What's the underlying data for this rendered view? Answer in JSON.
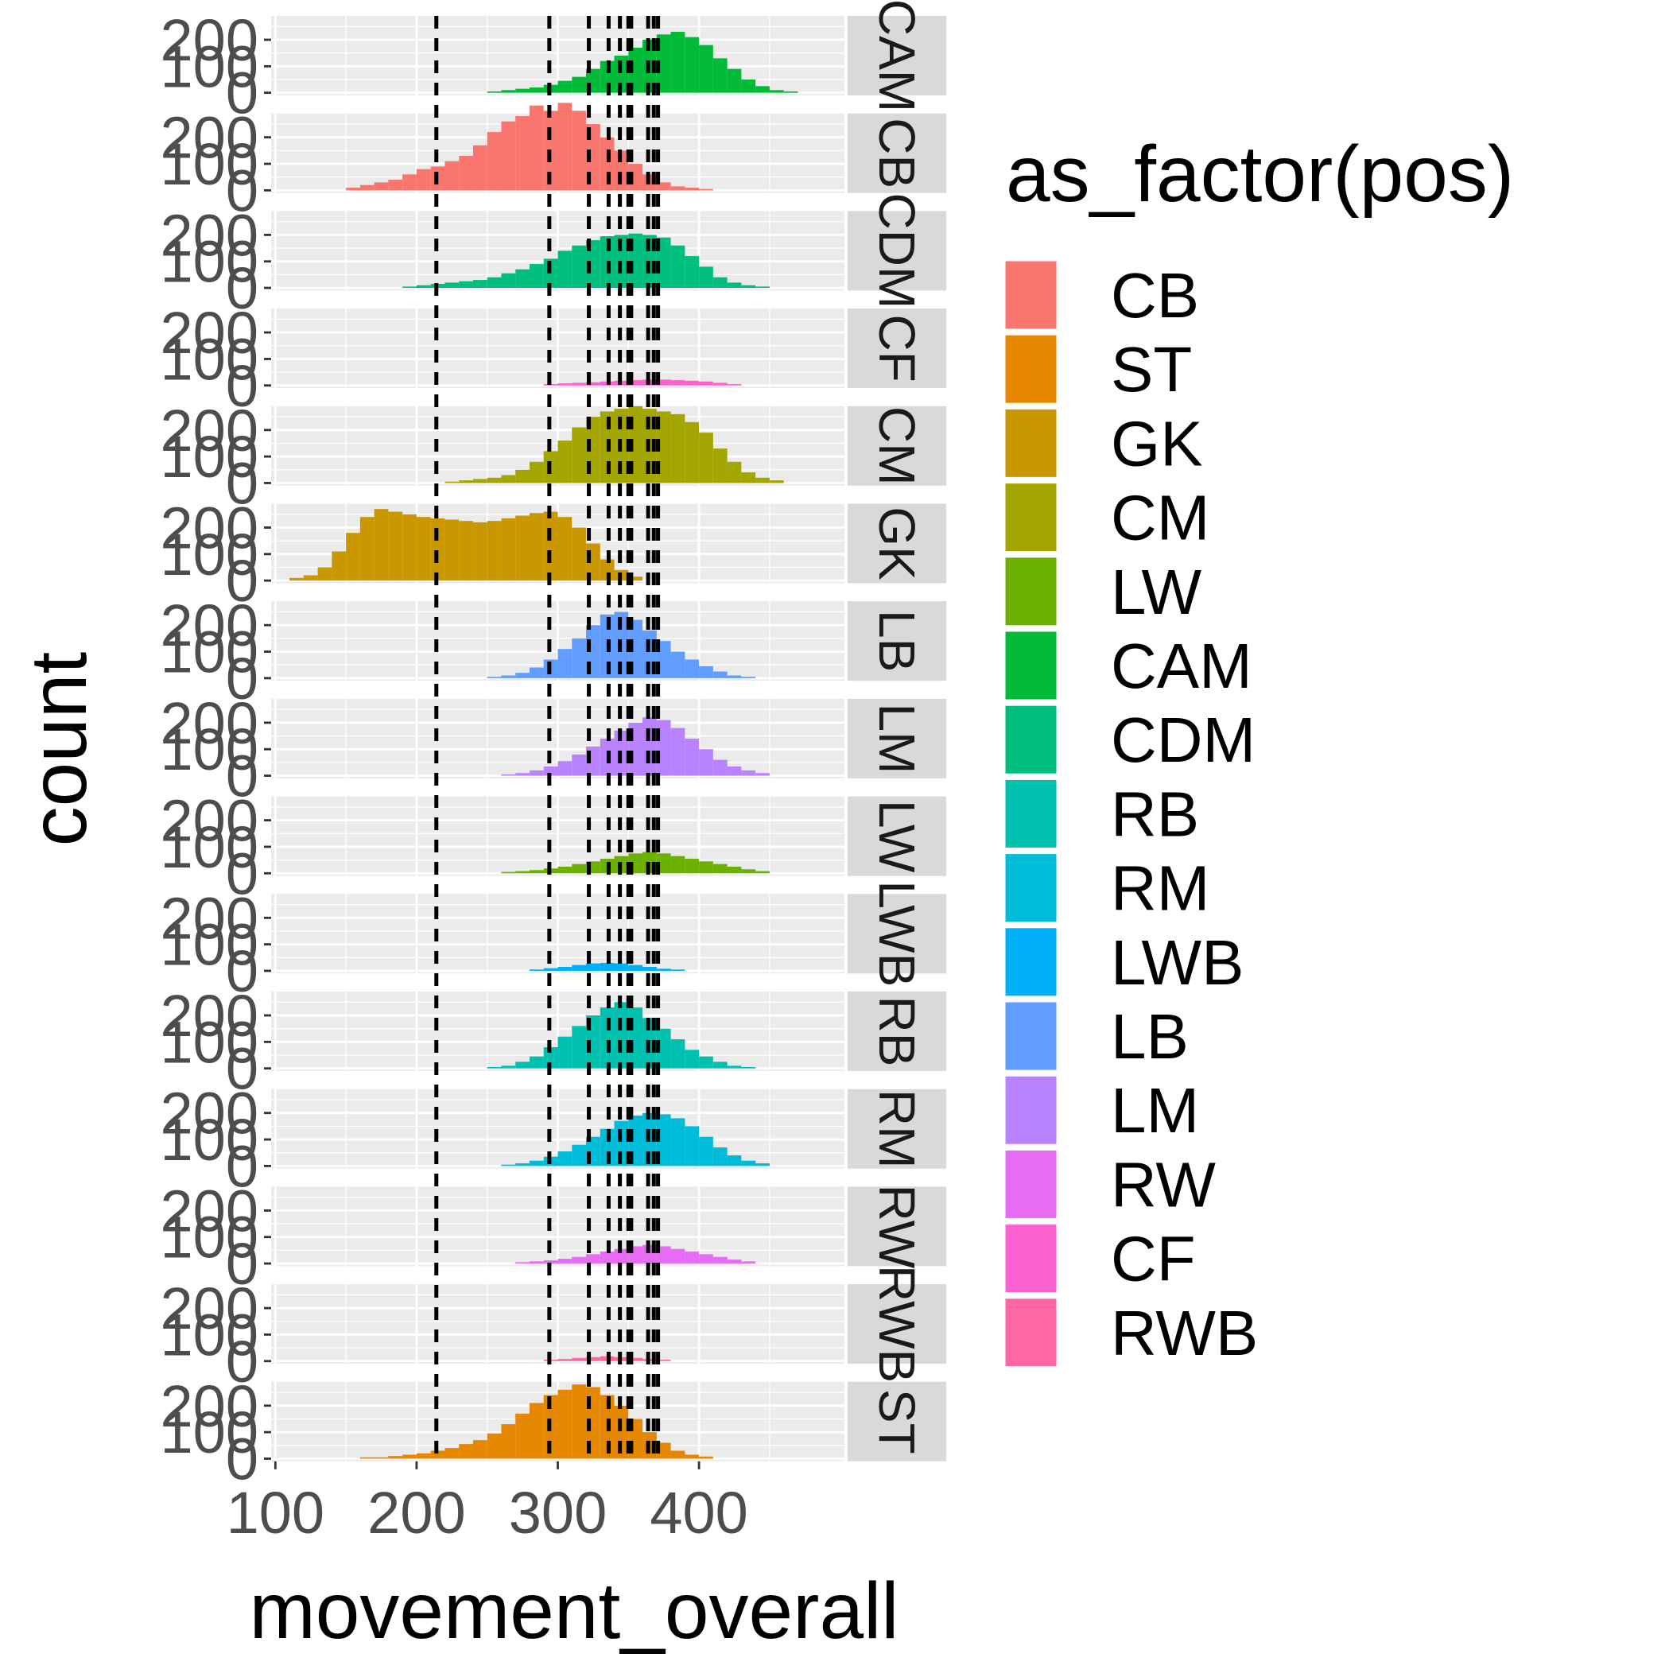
{
  "chart_data": {
    "type": "histogram",
    "x_label": "movement_overall",
    "y_label": "count",
    "x_ticks": [
      100,
      200,
      300,
      400
    ],
    "xlim": [
      97,
      503
    ],
    "y_ticks": [
      0,
      100,
      200
    ],
    "y_tick_labels": [
      "0",
      "100",
      "200"
    ],
    "ylim": [
      -10,
      290
    ],
    "bin_width": 10,
    "grid": true,
    "legend": {
      "title": "as_factor(pos)",
      "position": "right",
      "entries": [
        {
          "label": "CB",
          "color": "#F8766D"
        },
        {
          "label": "ST",
          "color": "#E58700"
        },
        {
          "label": "GK",
          "color": "#C99800"
        },
        {
          "label": "CM",
          "color": "#A3A500"
        },
        {
          "label": "LW",
          "color": "#6BB100"
        },
        {
          "label": "CAM",
          "color": "#00BA38"
        },
        {
          "label": "CDM",
          "color": "#00BF7D"
        },
        {
          "label": "RB",
          "color": "#00C0AF"
        },
        {
          "label": "RM",
          "color": "#00BCD8"
        },
        {
          "label": "LWB",
          "color": "#00B0F6"
        },
        {
          "label": "LB",
          "color": "#619CFF"
        },
        {
          "label": "LM",
          "color": "#B983FF"
        },
        {
          "label": "RW",
          "color": "#E76BF3"
        },
        {
          "label": "CF",
          "color": "#FD61D1"
        },
        {
          "label": "RWB",
          "color": "#FF67A4"
        }
      ]
    },
    "vlines": [
      214,
      294,
      322,
      336,
      344,
      350,
      352,
      364,
      368,
      371
    ],
    "panels": [
      {
        "strip": "CAM",
        "pos": "CAM",
        "color": "#00BA38",
        "start": 250,
        "counts": [
          5,
          10,
          15,
          20,
          30,
          45,
          60,
          90,
          120,
          140,
          170,
          200,
          220,
          230,
          210,
          180,
          130,
          90,
          50,
          25,
          10,
          5
        ]
      },
      {
        "strip": "CB",
        "pos": "CB",
        "color": "#F8766D",
        "start": 150,
        "counts": [
          10,
          20,
          30,
          40,
          60,
          80,
          90,
          110,
          130,
          170,
          220,
          260,
          280,
          320,
          300,
          330,
          300,
          250,
          200,
          150,
          100,
          60,
          30,
          15,
          10,
          5
        ]
      },
      {
        "strip": "CDM",
        "pos": "CDM",
        "color": "#00BF7D",
        "start": 190,
        "counts": [
          5,
          10,
          15,
          20,
          25,
          30,
          40,
          55,
          70,
          90,
          110,
          140,
          160,
          180,
          195,
          200,
          205,
          200,
          190,
          160,
          120,
          80,
          40,
          20,
          10,
          5
        ]
      },
      {
        "strip": "CF",
        "pos": "CF",
        "color": "#FD61D1",
        "start": 290,
        "counts": [
          5,
          8,
          10,
          12,
          15,
          18,
          20,
          22,
          22,
          20,
          18,
          15,
          10,
          5
        ]
      },
      {
        "strip": "CM",
        "pos": "CM",
        "color": "#A3A500",
        "start": 220,
        "counts": [
          5,
          10,
          15,
          20,
          30,
          50,
          80,
          120,
          160,
          210,
          250,
          270,
          280,
          290,
          280,
          270,
          260,
          230,
          190,
          130,
          80,
          40,
          20,
          10
        ]
      },
      {
        "strip": "GK",
        "pos": "GK",
        "color": "#C99800",
        "start": 110,
        "counts": [
          10,
          20,
          50,
          110,
          180,
          240,
          270,
          260,
          250,
          240,
          235,
          230,
          225,
          220,
          225,
          235,
          245,
          255,
          260,
          240,
          200,
          140,
          80,
          40,
          15
        ]
      },
      {
        "strip": "LB",
        "pos": "LB",
        "color": "#619CFF",
        "start": 250,
        "counts": [
          5,
          10,
          20,
          40,
          70,
          110,
          150,
          200,
          240,
          250,
          220,
          180,
          140,
          100,
          70,
          45,
          25,
          10,
          5
        ]
      },
      {
        "strip": "LM",
        "pos": "LM",
        "color": "#B983FF",
        "start": 260,
        "counts": [
          5,
          10,
          20,
          35,
          55,
          80,
          110,
          140,
          170,
          200,
          220,
          210,
          180,
          140,
          100,
          60,
          35,
          20,
          10
        ]
      },
      {
        "strip": "LW",
        "pos": "LW",
        "color": "#6BB100",
        "start": 260,
        "counts": [
          5,
          8,
          12,
          18,
          25,
          35,
          45,
          55,
          65,
          75,
          80,
          75,
          65,
          55,
          45,
          35,
          25,
          15,
          8
        ]
      },
      {
        "strip": "LWB",
        "pos": "LWB",
        "color": "#00B0F6",
        "start": 280,
        "counts": [
          5,
          10,
          15,
          22,
          28,
          30,
          28,
          22,
          15,
          8,
          5
        ]
      },
      {
        "strip": "RB",
        "pos": "RB",
        "color": "#00C0AF",
        "start": 250,
        "counts": [
          5,
          10,
          25,
          45,
          80,
          120,
          160,
          200,
          230,
          250,
          230,
          190,
          150,
          110,
          70,
          45,
          25,
          10,
          5
        ]
      },
      {
        "strip": "RM",
        "pos": "RM",
        "color": "#00BCD8",
        "start": 260,
        "counts": [
          5,
          10,
          20,
          35,
          55,
          80,
          110,
          140,
          170,
          190,
          200,
          195,
          180,
          150,
          110,
          70,
          40,
          20,
          10
        ]
      },
      {
        "strip": "RW",
        "pos": "RW",
        "color": "#E76BF3",
        "start": 270,
        "counts": [
          5,
          8,
          12,
          18,
          25,
          35,
          45,
          55,
          65,
          70,
          65,
          55,
          45,
          35,
          25,
          15,
          8
        ]
      },
      {
        "strip": "RWB",
        "pos": "RWB",
        "color": "#FF67A4",
        "start": 290,
        "counts": [
          5,
          8,
          12,
          15,
          18,
          15,
          12,
          8,
          5
        ]
      },
      {
        "strip": "ST",
        "pos": "ST",
        "color": "#E58700",
        "start": 160,
        "counts": [
          5,
          5,
          10,
          15,
          20,
          30,
          40,
          55,
          70,
          95,
          130,
          170,
          210,
          240,
          260,
          280,
          270,
          240,
          200,
          150,
          100,
          60,
          30,
          15,
          8
        ]
      }
    ]
  }
}
